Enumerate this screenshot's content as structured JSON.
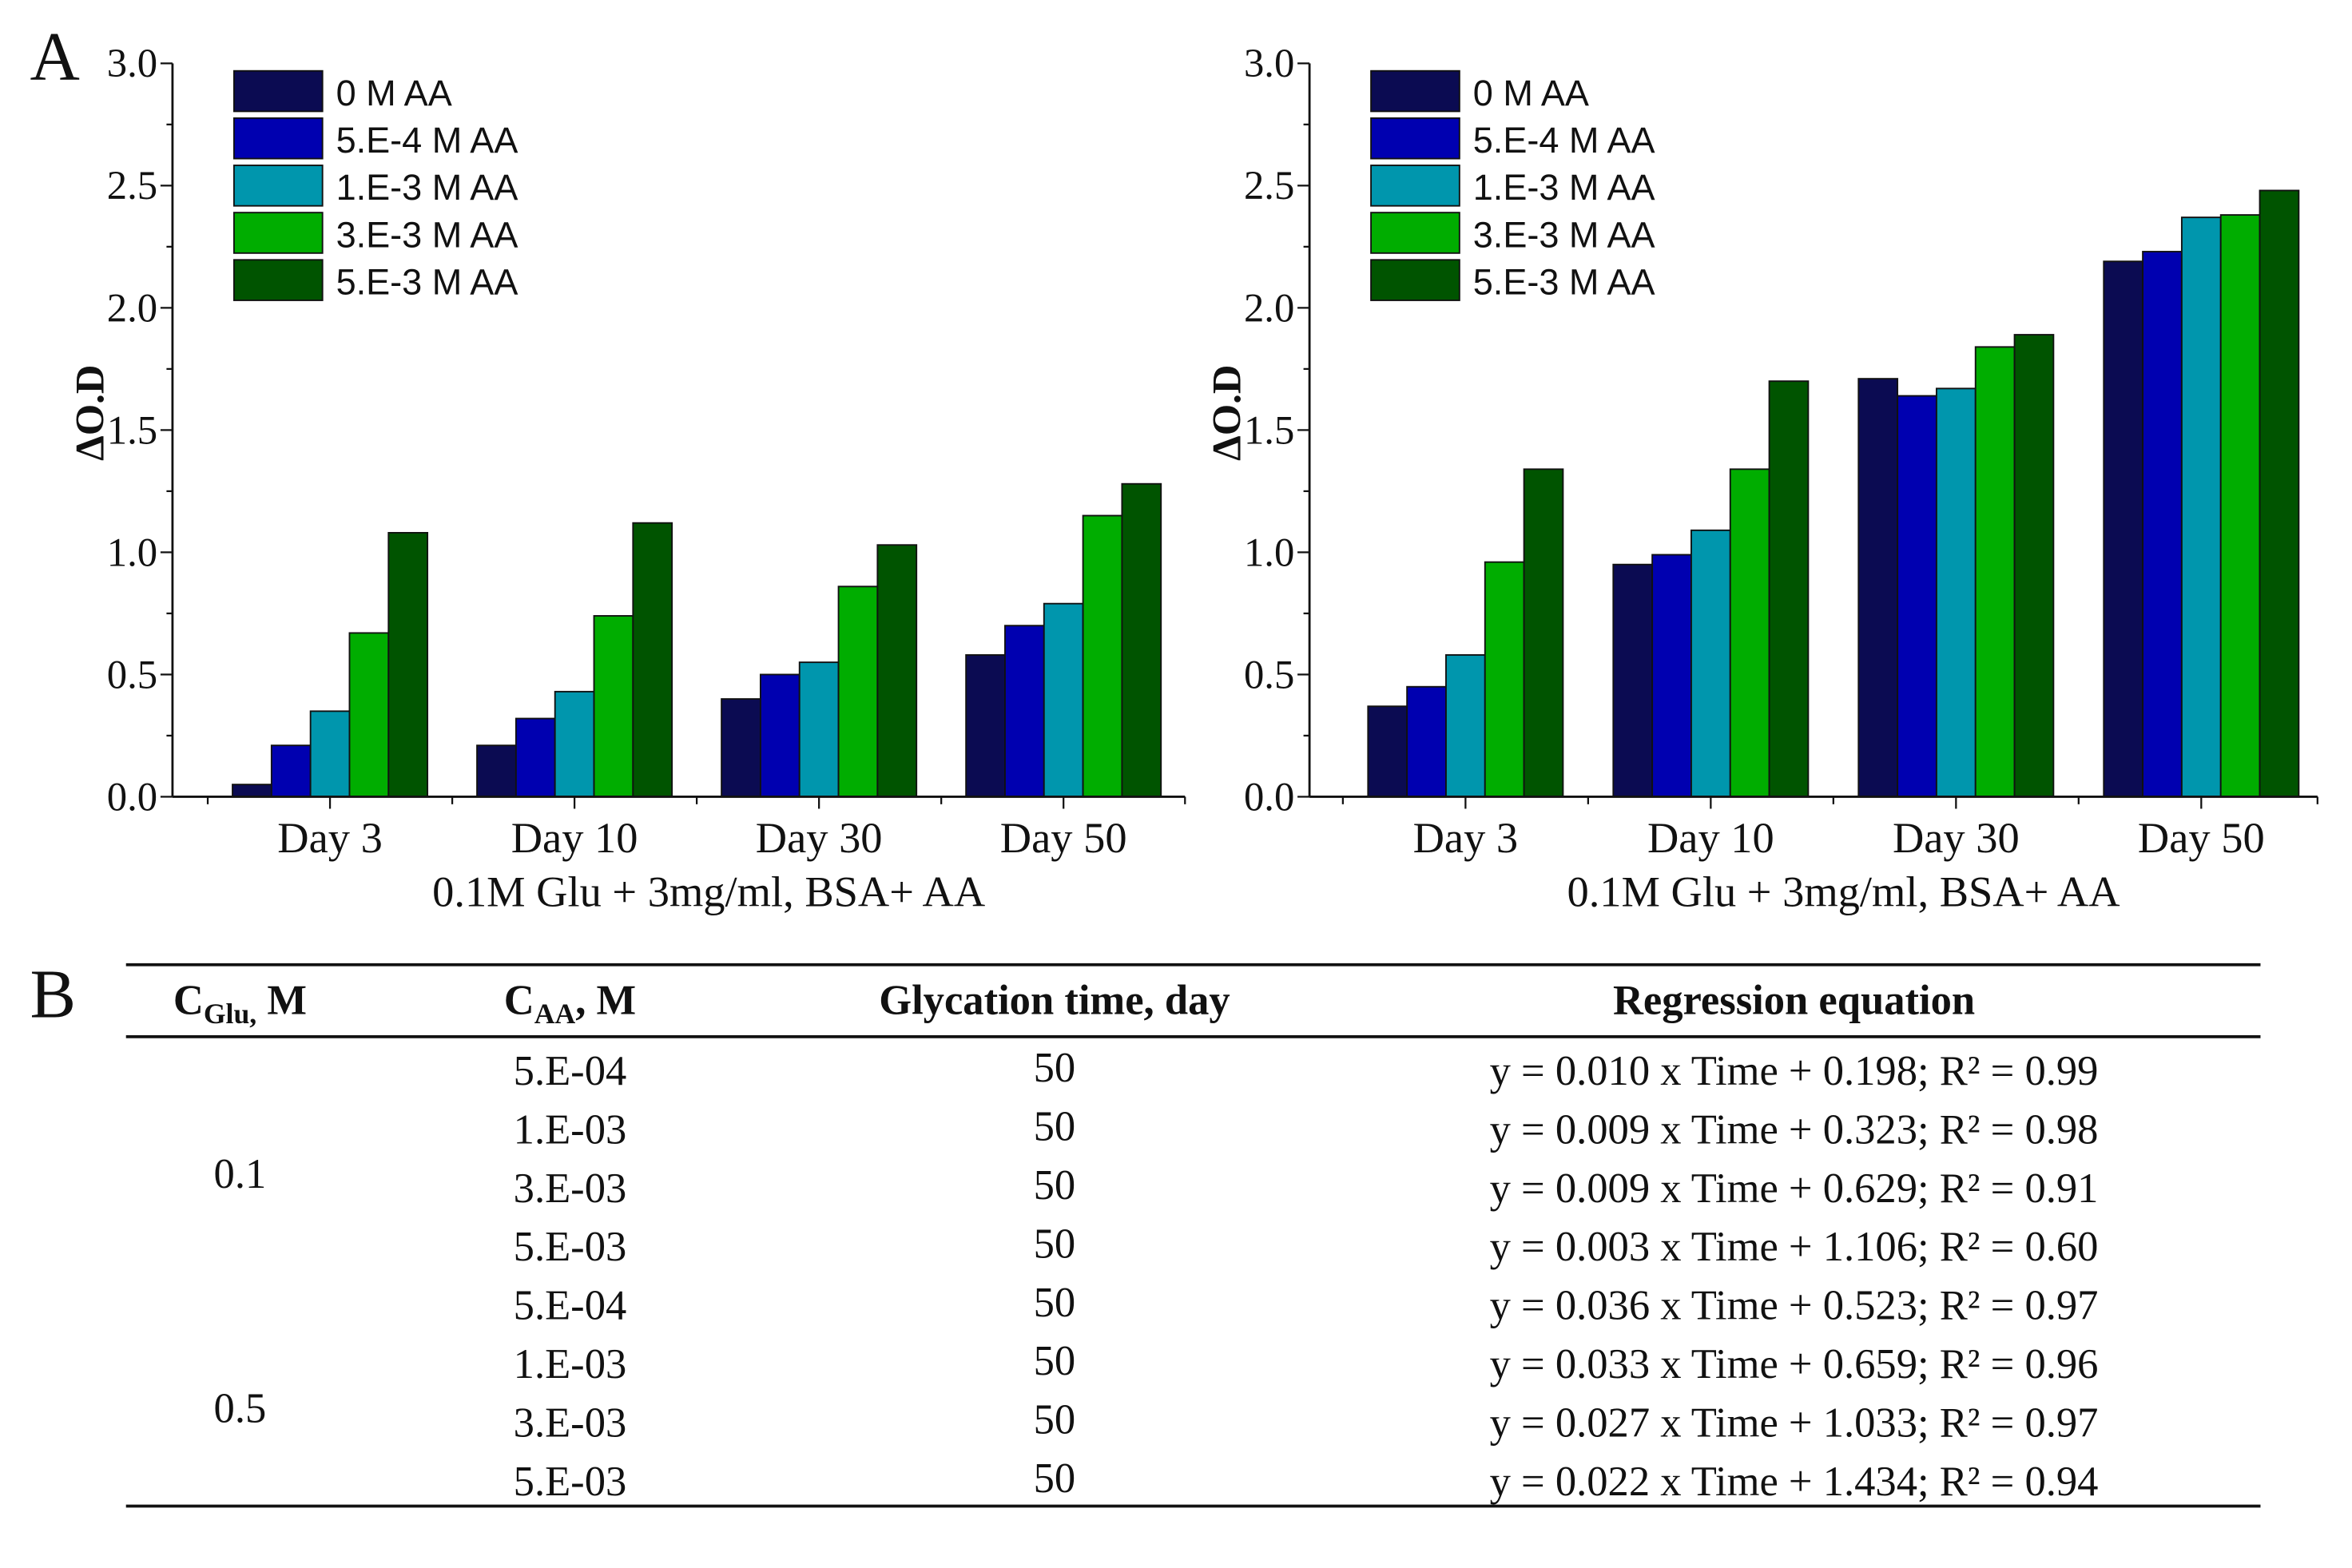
{
  "panel_labels": {
    "a": "A",
    "b": "B"
  },
  "series_colors": [
    "#0b0b52",
    "#0000b0",
    "#0096ad",
    "#00ad00",
    "#005400"
  ],
  "chart_data": [
    {
      "type": "bar",
      "ylabel": "ΔO.D",
      "xlabel": "0.1M Glu + 3mg/ml, BSA+ AA",
      "ylim": [
        0,
        3.0
      ],
      "yticks": [
        "0.0",
        "0.5",
        "1.0",
        "1.5",
        "2.0",
        "2.5",
        "3.0"
      ],
      "categories": [
        "Day 3",
        "Day 10",
        "Day 30",
        "Day 50"
      ],
      "legend": "top-left",
      "series": [
        {
          "name": "0 M AA",
          "values": [
            0.05,
            0.21,
            0.4,
            0.58
          ]
        },
        {
          "name": "5.E-4 M AA",
          "values": [
            0.21,
            0.32,
            0.5,
            0.7
          ]
        },
        {
          "name": "1.E-3 M AA",
          "values": [
            0.35,
            0.43,
            0.55,
            0.79
          ]
        },
        {
          "name": "3.E-3 M AA",
          "values": [
            0.67,
            0.74,
            0.86,
            1.15
          ]
        },
        {
          "name": "5.E-3 M AA",
          "values": [
            1.08,
            1.12,
            1.03,
            1.28
          ]
        }
      ]
    },
    {
      "type": "bar",
      "ylabel": "ΔO.D",
      "xlabel": "0.1M Glu + 3mg/ml, BSA+ AA",
      "ylim": [
        0,
        3.0
      ],
      "yticks": [
        "0.0",
        "0.5",
        "1.0",
        "1.5",
        "2.0",
        "2.5",
        "3.0"
      ],
      "categories": [
        "Day 3",
        "Day 10",
        "Day 30",
        "Day 50"
      ],
      "legend": "top-left",
      "series": [
        {
          "name": "0 M AA",
          "values": [
            0.37,
            0.95,
            1.71,
            2.19
          ]
        },
        {
          "name": "5.E-4 M AA",
          "values": [
            0.45,
            0.99,
            1.64,
            2.23
          ]
        },
        {
          "name": "1.E-3 M AA",
          "values": [
            0.58,
            1.09,
            1.67,
            2.37
          ]
        },
        {
          "name": "3.E-3 M AA",
          "values": [
            0.96,
            1.34,
            1.84,
            2.38
          ]
        },
        {
          "name": "5.E-3 M AA",
          "values": [
            1.34,
            1.7,
            1.89,
            2.48
          ]
        }
      ]
    }
  ],
  "table": {
    "headers": [
      {
        "main": "C",
        "sub": "Glu,",
        "suffix": " M"
      },
      {
        "main": "C",
        "sub": "AA",
        "suffix": ", M"
      },
      {
        "main": "Glycation time, day"
      },
      {
        "main": "Regression equation"
      }
    ],
    "groups": [
      {
        "c_glu": "0.1",
        "rows": [
          {
            "c_aa": "5.E-04",
            "time": "50",
            "equation": "y = 0.010 x Time + 0.198; R² = 0.99"
          },
          {
            "c_aa": "1.E-03",
            "time": "50",
            "equation": "y = 0.009 x Time + 0.323; R² = 0.98"
          },
          {
            "c_aa": "3.E-03",
            "time": "50",
            "equation": "y = 0.009 x Time + 0.629; R² = 0.91"
          },
          {
            "c_aa": "5.E-03",
            "time": "50",
            "equation": "y = 0.003 x Time + 1.106; R² = 0.60"
          }
        ]
      },
      {
        "c_glu": "0.5",
        "rows": [
          {
            "c_aa": "5.E-04",
            "time": "50",
            "equation": "y = 0.036 x Time + 0.523; R² = 0.97"
          },
          {
            "c_aa": "1.E-03",
            "time": "50",
            "equation": "y = 0.033 x Time + 0.659; R² = 0.96"
          },
          {
            "c_aa": "3.E-03",
            "time": "50",
            "equation": "y = 0.027 x Time + 1.033; R² = 0.97"
          },
          {
            "c_aa": "5.E-03",
            "time": "50",
            "equation": "y = 0.022 x Time  + 1.434; R² = 0.94"
          }
        ]
      }
    ]
  }
}
